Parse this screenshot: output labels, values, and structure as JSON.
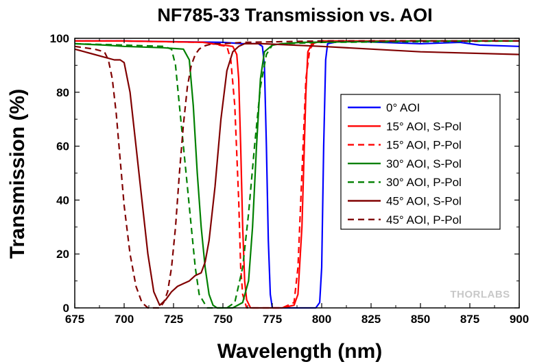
{
  "chart_data": {
    "type": "line",
    "title": "NF785-33 Transmission vs. AOI",
    "xlabel": "Wavelength (nm)",
    "ylabel": "Transmission (%)",
    "xlim": [
      675,
      900
    ],
    "ylim": [
      0,
      100
    ],
    "xticks": [
      "675",
      "700",
      "725",
      "750",
      "775",
      "800",
      "825",
      "850",
      "875",
      "900"
    ],
    "yticks": [
      "0",
      "20",
      "40",
      "60",
      "80",
      "100"
    ],
    "grid": false,
    "legend_position": "center-right",
    "watermark": "THORLABS",
    "series": [
      {
        "name": "0° AOI",
        "color": "#0000ff",
        "dash": "solid",
        "x": [
          675,
          700,
          750,
          760,
          768,
          770,
          771,
          772,
          773,
          774,
          775,
          790,
          797,
          799,
          800,
          801,
          802,
          803,
          810,
          830,
          850,
          870,
          880,
          900
        ],
        "y": [
          99,
          99,
          98.5,
          98,
          98,
          97,
          90,
          60,
          25,
          5,
          0,
          0,
          0,
          2,
          15,
          60,
          92,
          98,
          99,
          98.5,
          98,
          98.5,
          97.5,
          97
        ]
      },
      {
        "name": "15° AOI, S-Pol",
        "color": "#ff0000",
        "dash": "solid",
        "x": [
          675,
          700,
          740,
          755,
          757,
          758,
          759,
          760,
          761,
          762,
          764,
          780,
          786,
          788,
          790,
          792,
          793,
          795,
          800,
          850,
          900
        ],
        "y": [
          99,
          99,
          98.5,
          97,
          94,
          85,
          60,
          30,
          10,
          3,
          0,
          0,
          1,
          5,
          30,
          80,
          95,
          98,
          99,
          99,
          99
        ]
      },
      {
        "name": "15° AOI, P-Pol",
        "color": "#ff0000",
        "dash": "dashed",
        "x": [
          675,
          700,
          740,
          752,
          754,
          756,
          758,
          759,
          760,
          762,
          780,
          786,
          788,
          790,
          792,
          794,
          796,
          800,
          850,
          900
        ],
        "y": [
          99,
          99,
          98.5,
          97,
          92,
          75,
          40,
          15,
          5,
          0,
          0,
          2,
          15,
          50,
          85,
          96,
          98,
          99,
          99,
          99
        ]
      },
      {
        "name": "30° AOI, S-Pol",
        "color": "#008000",
        "dash": "solid",
        "x": [
          675,
          690,
          700,
          720,
          730,
          733,
          735,
          737,
          739,
          741,
          743,
          745,
          747,
          750,
          755,
          760,
          763,
          765,
          767,
          769,
          771,
          775,
          780,
          790,
          850,
          900
        ],
        "y": [
          98,
          97.5,
          97,
          96.5,
          96,
          92,
          75,
          50,
          30,
          15,
          5,
          1,
          0,
          0,
          0,
          2,
          10,
          30,
          60,
          85,
          95,
          97.5,
          98,
          98.5,
          99,
          99
        ]
      },
      {
        "name": "30° AOI, P-Pol",
        "color": "#008000",
        "dash": "dashed",
        "x": [
          675,
          700,
          720,
          724,
          726,
          728,
          730,
          732,
          734,
          736,
          738,
          742,
          748,
          752,
          756,
          760,
          763,
          766,
          769,
          772,
          775,
          780,
          800,
          900
        ],
        "y": [
          98,
          97.5,
          97,
          96,
          90,
          75,
          60,
          45,
          30,
          15,
          5,
          0,
          0,
          0,
          2,
          15,
          35,
          60,
          82,
          94,
          97.5,
          98,
          98.5,
          99
        ]
      },
      {
        "name": "45° AOI, S-Pol",
        "color": "#800000",
        "dash": "solid",
        "x": [
          675,
          680,
          690,
          695,
          698,
          700,
          703,
          706,
          709,
          712,
          715,
          718,
          721,
          724,
          727,
          730,
          733,
          736,
          739,
          741,
          743,
          746,
          749,
          752,
          755,
          758,
          761,
          770,
          800,
          850,
          900
        ],
        "y": [
          96,
          95,
          93,
          92,
          92,
          91,
          80,
          60,
          40,
          20,
          6,
          1,
          3,
          6,
          8,
          9,
          10,
          12,
          13,
          17,
          25,
          45,
          70,
          88,
          95,
          97,
          98,
          98,
          97,
          95,
          94
        ]
      },
      {
        "name": "45° AOI, P-Pol",
        "color": "#800000",
        "dash": "dashed",
        "x": [
          675,
          685,
          690,
          692,
          694,
          696,
          698,
          700,
          703,
          706,
          709,
          712,
          715,
          718,
          720,
          722,
          724,
          726,
          728,
          730,
          732,
          734,
          736,
          738,
          740,
          742,
          745,
          750,
          760,
          800,
          900
        ],
        "y": [
          97,
          96,
          95,
          92,
          85,
          72,
          55,
          38,
          20,
          8,
          2,
          0,
          0,
          0,
          2,
          6,
          15,
          30,
          50,
          68,
          82,
          90,
          94,
          96,
          97,
          97.5,
          98,
          98,
          98.5,
          99,
          99
        ]
      }
    ]
  }
}
